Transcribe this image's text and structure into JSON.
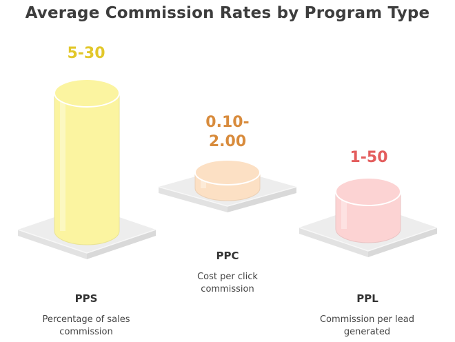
{
  "chart_data": {
    "type": "bar",
    "title": "Average Commission Rates by Program Type",
    "categories": [
      "PPS",
      "PPC",
      "PPL"
    ],
    "series": [
      {
        "value_labels": [
          "5-30",
          "0.10-2.00",
          "1-50"
        ],
        "descriptions": [
          "Percentage of sales commission",
          "Cost per click commission",
          "Commission per lead generated"
        ]
      }
    ],
    "colors": {
      "PPS": "#fbf4a0",
      "PPC": "#fce0c4",
      "PPL": "#fcd3d3"
    },
    "label_colors": {
      "PPS": "#e2c72a",
      "PPC": "#d88b3c",
      "PPL": "#e35d5d"
    }
  }
}
